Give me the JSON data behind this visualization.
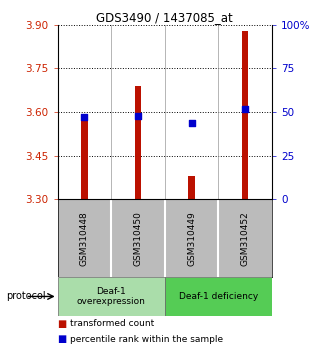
{
  "title": "GDS3490 / 1437085_at",
  "samples": [
    "GSM310448",
    "GSM310450",
    "GSM310449",
    "GSM310452"
  ],
  "transformed_counts": [
    3.57,
    3.69,
    3.38,
    3.88
  ],
  "percentile_ranks": [
    47,
    48,
    44,
    52
  ],
  "ylim_left": [
    3.3,
    3.9
  ],
  "yticks_left": [
    3.3,
    3.45,
    3.6,
    3.75,
    3.9
  ],
  "yticks_right": [
    0,
    25,
    50,
    75,
    100
  ],
  "ylim_right": [
    0,
    100
  ],
  "bar_color": "#bb1100",
  "dot_color": "#0000cc",
  "groups": [
    {
      "label": "Deaf-1\noverexpression",
      "color": "#aaddaa"
    },
    {
      "label": "Deaf-1 deficiency",
      "color": "#55cc55"
    }
  ],
  "protocol_label": "protocol",
  "legend_bar_label": "transformed count",
  "legend_dot_label": "percentile rank within the sample",
  "bg_color": "#ffffff",
  "tick_label_color_left": "#cc2200",
  "tick_label_color_right": "#0000cc",
  "sample_bg_color": "#bbbbbb"
}
